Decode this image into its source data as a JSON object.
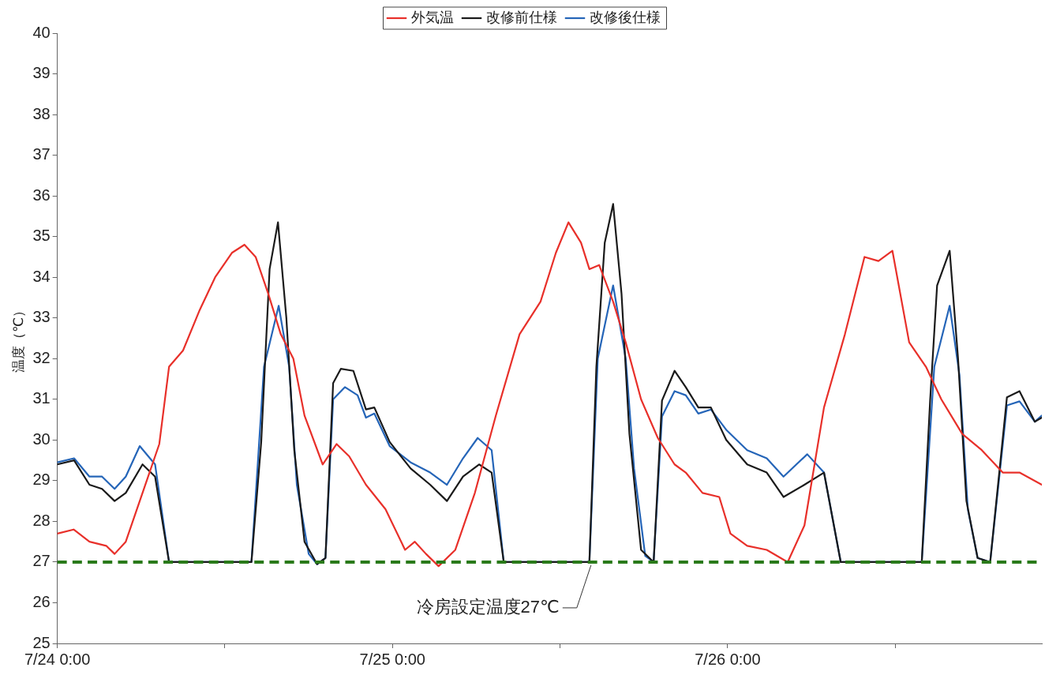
{
  "chart_data": {
    "type": "line",
    "ylabel": "温度（℃）",
    "legend": "top",
    "grid": false,
    "marker": "none",
    "line_style": "solid",
    "xlim": [
      "--07-24T00:00",
      "--07-26T22:30"
    ],
    "xticks": [
      {
        "value": "--07-24T00:00",
        "label": "7/24 0:00"
      },
      {
        "value": "--07-24T12:00",
        "label": null
      },
      {
        "value": "--07-25T00:00",
        "label": "7/25 0:00"
      },
      {
        "value": "--07-25T12:00",
        "label": null
      },
      {
        "value": "--07-26T00:00",
        "label": "7/26 0:00"
      },
      {
        "value": "--07-26T12:00",
        "label": null
      }
    ],
    "ylim": [
      25,
      40
    ],
    "yticks": [
      25,
      26,
      27,
      28,
      29,
      30,
      31,
      32,
      33,
      34,
      35,
      36,
      37,
      38,
      39,
      40
    ],
    "ref_lines": [
      {
        "axis": "y",
        "value": 27,
        "label": "冷房設定温度27℃",
        "color": "#2a7a1a",
        "line_style": "dashed"
      }
    ],
    "series": [
      {
        "name": "外気温",
        "color": "#e8302a",
        "x": [
          "--07-24T00:00",
          "--07-24T01:10",
          "--07-24T02:18",
          "--07-24T03:30",
          "--07-24T04:06",
          "--07-24T04:54",
          "--07-24T06:06",
          "--07-24T07:18",
          "--07-24T08:00",
          "--07-24T09:00",
          "--07-24T10:12",
          "--07-24T11:18",
          "--07-24T12:30",
          "--07-24T13:24",
          "--07-24T14:12",
          "--07-24T15:06",
          "--07-24T16:00",
          "--07-24T16:54",
          "--07-24T17:42",
          "--07-24T19:00",
          "--07-24T20:00",
          "--07-24T20:54",
          "--07-24T22:06",
          "--07-24T23:30",
          "--07-25T00:54",
          "--07-25T01:36",
          "--07-25T02:24",
          "--07-25T03:18",
          "--07-25T04:30",
          "--07-25T05:54",
          "--07-25T07:24",
          "--07-25T09:06",
          "--07-25T10:36",
          "--07-25T11:42",
          "--07-25T12:36",
          "--07-25T13:30",
          "--07-25T14:06",
          "--07-25T14:48",
          "--07-25T15:48",
          "--07-25T16:42",
          "--07-25T17:48",
          "--07-25T19:00",
          "--07-25T20:12",
          "--07-25T21:00",
          "--07-25T22:12",
          "--07-25T23:24",
          "--07-26T00:12",
          "--07-26T01:24",
          "--07-26T02:48",
          "--07-26T04:18",
          "--07-26T05:30",
          "--07-26T06:54",
          "--07-26T08:24",
          "--07-26T09:48",
          "--07-26T10:48",
          "--07-26T11:48",
          "--07-26T13:00",
          "--07-26T14:12",
          "--07-26T15:18",
          "--07-26T16:48",
          "--07-26T18:12",
          "--07-26T19:42",
          "--07-26T20:54",
          "--07-26T22:30"
        ],
        "values": [
          27.7,
          27.8,
          27.5,
          27.4,
          27.2,
          27.5,
          28.7,
          29.9,
          31.8,
          32.2,
          33.2,
          34.0,
          34.6,
          34.8,
          34.5,
          33.6,
          32.6,
          32.0,
          30.6,
          29.4,
          29.9,
          29.6,
          28.9,
          28.3,
          27.3,
          27.5,
          27.2,
          26.9,
          27.3,
          28.7,
          30.6,
          32.6,
          33.4,
          34.6,
          35.35,
          34.85,
          34.2,
          34.3,
          33.4,
          32.4,
          31.0,
          30.05,
          29.4,
          29.2,
          28.7,
          28.6,
          27.7,
          27.4,
          27.3,
          27.0,
          27.9,
          30.8,
          32.6,
          34.5,
          34.4,
          34.65,
          32.4,
          31.8,
          31.0,
          30.15,
          29.75,
          29.2,
          29.2,
          28.9
        ]
      },
      {
        "name": "改修前仕様",
        "color": "#1a1a1a",
        "x": [
          "--07-24T00:00",
          "--07-24T01:12",
          "--07-24T02:18",
          "--07-24T03:12",
          "--07-24T04:06",
          "--07-24T04:54",
          "--07-24T06:06",
          "--07-24T07:00",
          "--07-24T08:00",
          "--07-24T09:00",
          "--07-24T13:54",
          "--07-24T14:36",
          "--07-24T15:12",
          "--07-24T15:48",
          "--07-24T16:24",
          "--07-24T16:58",
          "--07-24T17:42",
          "--07-24T18:36",
          "--07-24T19:12",
          "--07-24T19:45",
          "--07-24T20:18",
          "--07-24T21:12",
          "--07-24T22:06",
          "--07-24T22:42",
          "--07-24T23:48",
          "--07-25T01:18",
          "--07-25T02:42",
          "--07-25T03:54",
          "--07-25T05:03",
          "--07-25T06:12",
          "--07-25T07:06",
          "--07-25T07:58",
          "--07-25T14:06",
          "--07-25T14:36",
          "--07-25T15:12",
          "--07-25T15:48",
          "--07-25T16:24",
          "--07-25T16:58",
          "--07-25T17:48",
          "--07-25T18:42",
          "--07-25T19:18",
          "--07-25T20:12",
          "--07-25T21:00",
          "--07-25T21:54",
          "--07-25T22:48",
          "--07-25T23:54",
          "--07-26T01:24",
          "--07-26T02:48",
          "--07-26T04:00",
          "--07-26T05:30",
          "--07-26T06:54",
          "--07-26T08:06",
          "--07-26T13:54",
          "--07-26T14:30",
          "--07-26T15:00",
          "--07-26T15:54",
          "--07-26T16:30",
          "--07-26T17:06",
          "--07-26T17:54",
          "--07-26T18:48",
          "--07-26T20:00",
          "--07-26T20:54",
          "--07-26T22:00",
          "--07-26T22:30"
        ],
        "values": [
          29.4,
          29.5,
          28.9,
          28.8,
          28.5,
          28.7,
          29.4,
          29.1,
          27.0,
          27.0,
          27.0,
          29.95,
          34.2,
          35.35,
          33.0,
          29.75,
          27.5,
          26.95,
          27.1,
          31.4,
          31.75,
          31.7,
          30.75,
          30.8,
          29.95,
          29.3,
          28.9,
          28.5,
          29.1,
          29.4,
          29.2,
          27.0,
          27.0,
          31.8,
          34.85,
          35.8,
          33.6,
          30.15,
          27.3,
          27.0,
          30.97,
          31.7,
          31.3,
          30.8,
          30.8,
          30.0,
          29.4,
          29.2,
          28.6,
          28.9,
          29.2,
          27.0,
          27.0,
          30.97,
          33.8,
          34.65,
          32.0,
          28.5,
          27.1,
          27.0,
          31.05,
          31.2,
          30.45,
          30.55
        ]
      },
      {
        "name": "改修後仕様",
        "color": "#2565b8",
        "x": [
          "--07-24T00:00",
          "--07-24T01:12",
          "--07-24T02:18",
          "--07-24T03:12",
          "--07-24T04:06",
          "--07-24T04:54",
          "--07-24T05:54",
          "--07-24T07:00",
          "--07-24T08:00",
          "--07-24T13:54",
          "--07-24T14:48",
          "--07-24T15:51",
          "--07-24T16:36",
          "--07-24T17:09",
          "--07-24T18:00",
          "--07-24T18:36",
          "--07-24T19:12",
          "--07-24T19:45",
          "--07-24T20:36",
          "--07-24T21:30",
          "--07-24T22:06",
          "--07-24T22:42",
          "--07-24T23:48",
          "--07-25T01:18",
          "--07-25T02:42",
          "--07-25T03:54",
          "--07-25T05:03",
          "--07-25T06:06",
          "--07-25T07:06",
          "--07-25T07:58",
          "--07-25T14:06",
          "--07-25T14:42",
          "--07-25T15:48",
          "--07-25T16:42",
          "--07-25T17:18",
          "--07-25T18:06",
          "--07-25T18:42",
          "--07-25T19:18",
          "--07-25T20:12",
          "--07-25T21:00",
          "--07-25T21:54",
          "--07-25T22:48",
          "--07-25T23:54",
          "--07-26T01:24",
          "--07-26T02:48",
          "--07-26T04:00",
          "--07-26T05:42",
          "--07-26T06:54",
          "--07-26T08:06",
          "--07-26T13:54",
          "--07-26T14:48",
          "--07-26T15:54",
          "--07-26T16:36",
          "--07-26T17:12",
          "--07-26T17:54",
          "--07-26T18:48",
          "--07-26T20:00",
          "--07-26T20:54",
          "--07-26T22:00",
          "--07-26T22:30"
        ],
        "values": [
          29.45,
          29.55,
          29.1,
          29.1,
          28.8,
          29.1,
          29.85,
          29.4,
          27.0,
          27.0,
          31.8,
          33.3,
          31.8,
          28.9,
          27.2,
          26.95,
          27.1,
          31.0,
          31.3,
          31.1,
          30.55,
          30.65,
          29.85,
          29.45,
          29.2,
          28.9,
          29.55,
          30.05,
          29.75,
          27.0,
          27.0,
          32.0,
          33.8,
          32.0,
          29.3,
          27.15,
          27.0,
          30.58,
          31.2,
          31.1,
          30.65,
          30.75,
          30.25,
          29.75,
          29.55,
          29.1,
          29.65,
          29.2,
          27.0,
          27.0,
          31.8,
          33.3,
          31.6,
          28.3,
          27.1,
          27.0,
          30.85,
          30.95,
          30.45,
          30.6
        ]
      }
    ]
  }
}
